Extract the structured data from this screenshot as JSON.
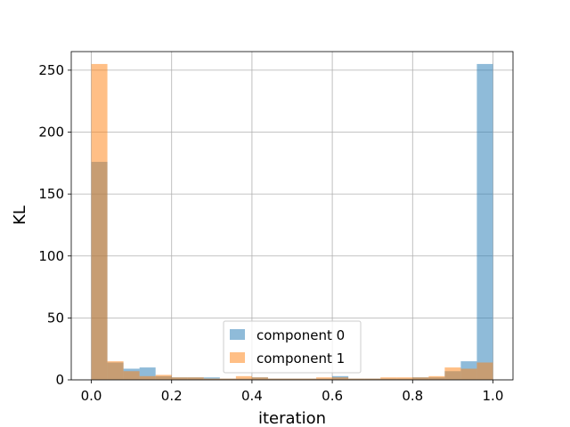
{
  "chart_data": {
    "type": "bar",
    "subtype": "histogram",
    "title": "",
    "xlabel": "iteration",
    "ylabel": "KL",
    "xlim": [
      -0.05,
      1.05
    ],
    "ylim": [
      0,
      265
    ],
    "xticks": [
      0.0,
      0.2,
      0.4,
      0.6,
      0.8,
      1.0
    ],
    "xtick_labels": [
      "0.0",
      "0.2",
      "0.4",
      "0.6",
      "0.8",
      "1.0"
    ],
    "yticks": [
      0,
      50,
      100,
      150,
      200,
      250
    ],
    "ytick_labels": [
      "0",
      "50",
      "100",
      "150",
      "200",
      "250"
    ],
    "grid": true,
    "legend_position": "lower-center",
    "bins": 25,
    "bin_range": [
      0.0,
      1.0
    ],
    "series": [
      {
        "name": "component 0",
        "color": "#1f77b4",
        "alpha": 0.5,
        "values": [
          176,
          14,
          9,
          10,
          3,
          2,
          2,
          2,
          1,
          1,
          2,
          1,
          1,
          1,
          1,
          3,
          1,
          1,
          1,
          1,
          2,
          2,
          7,
          15,
          255
        ]
      },
      {
        "name": "component 1",
        "color": "#ff7f0e",
        "alpha": 0.5,
        "values": [
          255,
          15,
          7,
          3,
          4,
          2,
          2,
          1,
          1,
          3,
          2,
          1,
          1,
          1,
          2,
          2,
          1,
          1,
          2,
          2,
          2,
          3,
          10,
          9,
          14
        ]
      }
    ],
    "overlay_last_series_extra": [
      176
    ]
  }
}
